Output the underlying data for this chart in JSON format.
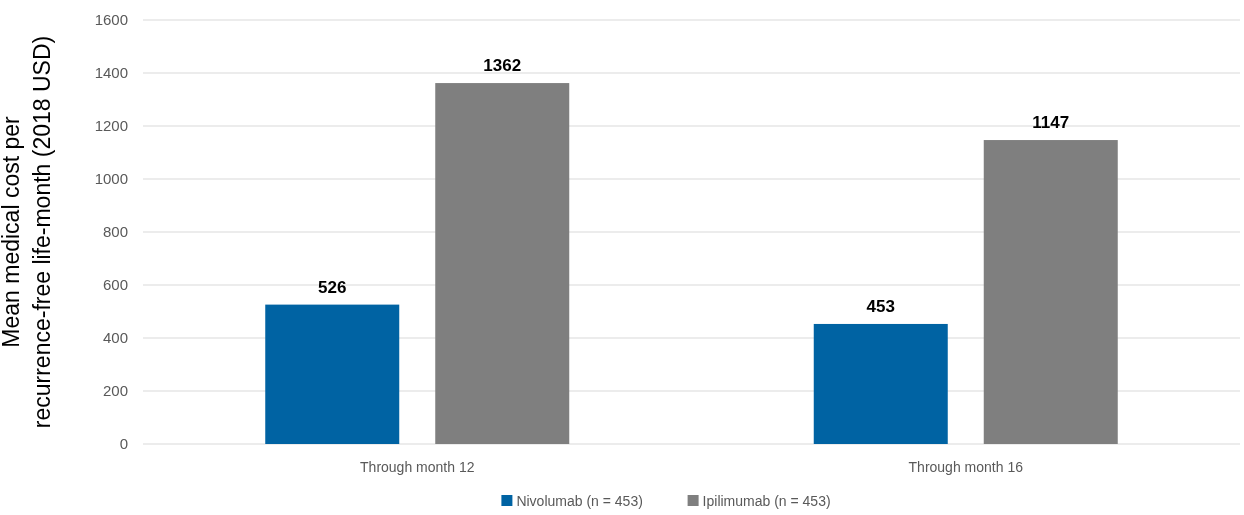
{
  "chart_data": {
    "type": "bar",
    "ylabel": "Mean medical cost per\nrecurrence-free life-month (2018 USD)",
    "categories": [
      "Through month 12",
      "Through month 16"
    ],
    "series": [
      {
        "name": "Nivolumab (n = 453)",
        "color": "#0063a3",
        "values": [
          526,
          453
        ]
      },
      {
        "name": "Ipilimumab (n = 453)",
        "color": "#7f7f7f",
        "values": [
          1362,
          1147
        ]
      }
    ],
    "ylim": [
      0,
      1600
    ],
    "yticks": [
      0,
      200,
      400,
      600,
      800,
      1000,
      1200,
      1400,
      1600
    ],
    "grid": "y",
    "legend": "bottom",
    "data_labels": true
  }
}
